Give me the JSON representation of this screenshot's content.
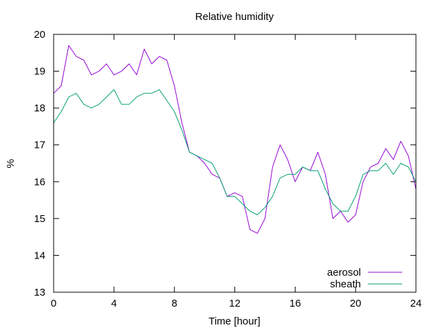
{
  "chart_data": {
    "type": "line",
    "title": "Relative humidity",
    "xlabel": "Time [hour]",
    "ylabel": "%",
    "xlim": [
      0,
      24
    ],
    "ylim": [
      13,
      20
    ],
    "x_ticks": [
      0,
      4,
      8,
      12,
      16,
      20,
      24
    ],
    "y_ticks": [
      13,
      14,
      15,
      16,
      17,
      18,
      19,
      20
    ],
    "grid": false,
    "legend_position": "bottom-right",
    "colors": {
      "aerosol": "#9400d3",
      "sheath": "#009e73",
      "axes": "#000000"
    },
    "x": [
      0.0,
      0.5,
      1.0,
      1.5,
      2.0,
      2.5,
      3.0,
      3.5,
      4.0,
      4.5,
      5.0,
      5.5,
      6.0,
      6.5,
      7.0,
      7.5,
      8.0,
      8.5,
      9.0,
      9.5,
      10.0,
      10.5,
      11.0,
      11.5,
      12.0,
      12.5,
      13.0,
      13.5,
      14.0,
      14.5,
      15.0,
      15.5,
      16.0,
      16.5,
      17.0,
      17.5,
      18.0,
      18.5,
      19.0,
      19.5,
      20.0,
      20.5,
      21.0,
      21.5,
      22.0,
      22.5,
      23.0,
      23.5,
      24.0
    ],
    "series": [
      {
        "name": "aerosol",
        "values": [
          18.4,
          18.6,
          19.7,
          19.4,
          19.3,
          18.9,
          19.0,
          19.2,
          18.9,
          19.0,
          19.2,
          18.9,
          19.6,
          19.2,
          19.4,
          19.3,
          18.6,
          17.6,
          16.8,
          16.7,
          16.5,
          16.2,
          16.1,
          15.6,
          15.7,
          15.6,
          14.7,
          14.6,
          15.0,
          16.4,
          17.0,
          16.6,
          16.0,
          16.4,
          16.3,
          16.8,
          16.2,
          15.0,
          15.2,
          14.9,
          15.1,
          16.0,
          16.4,
          16.5,
          16.9,
          16.6,
          17.1,
          16.7,
          15.8
        ],
        "color": "#9400d3"
      },
      {
        "name": "sheath",
        "values": [
          17.6,
          17.9,
          18.3,
          18.4,
          18.1,
          18.0,
          18.1,
          18.3,
          18.5,
          18.1,
          18.1,
          18.3,
          18.4,
          18.4,
          18.5,
          18.2,
          17.9,
          17.4,
          16.8,
          16.7,
          16.6,
          16.5,
          16.1,
          15.6,
          15.6,
          15.4,
          15.2,
          15.1,
          15.3,
          15.6,
          16.1,
          16.2,
          16.2,
          16.4,
          16.3,
          16.3,
          15.8,
          15.4,
          15.2,
          15.2,
          15.6,
          16.2,
          16.3,
          16.3,
          16.5,
          16.2,
          16.5,
          16.4,
          16.0
        ],
        "color": "#009e73"
      }
    ]
  }
}
